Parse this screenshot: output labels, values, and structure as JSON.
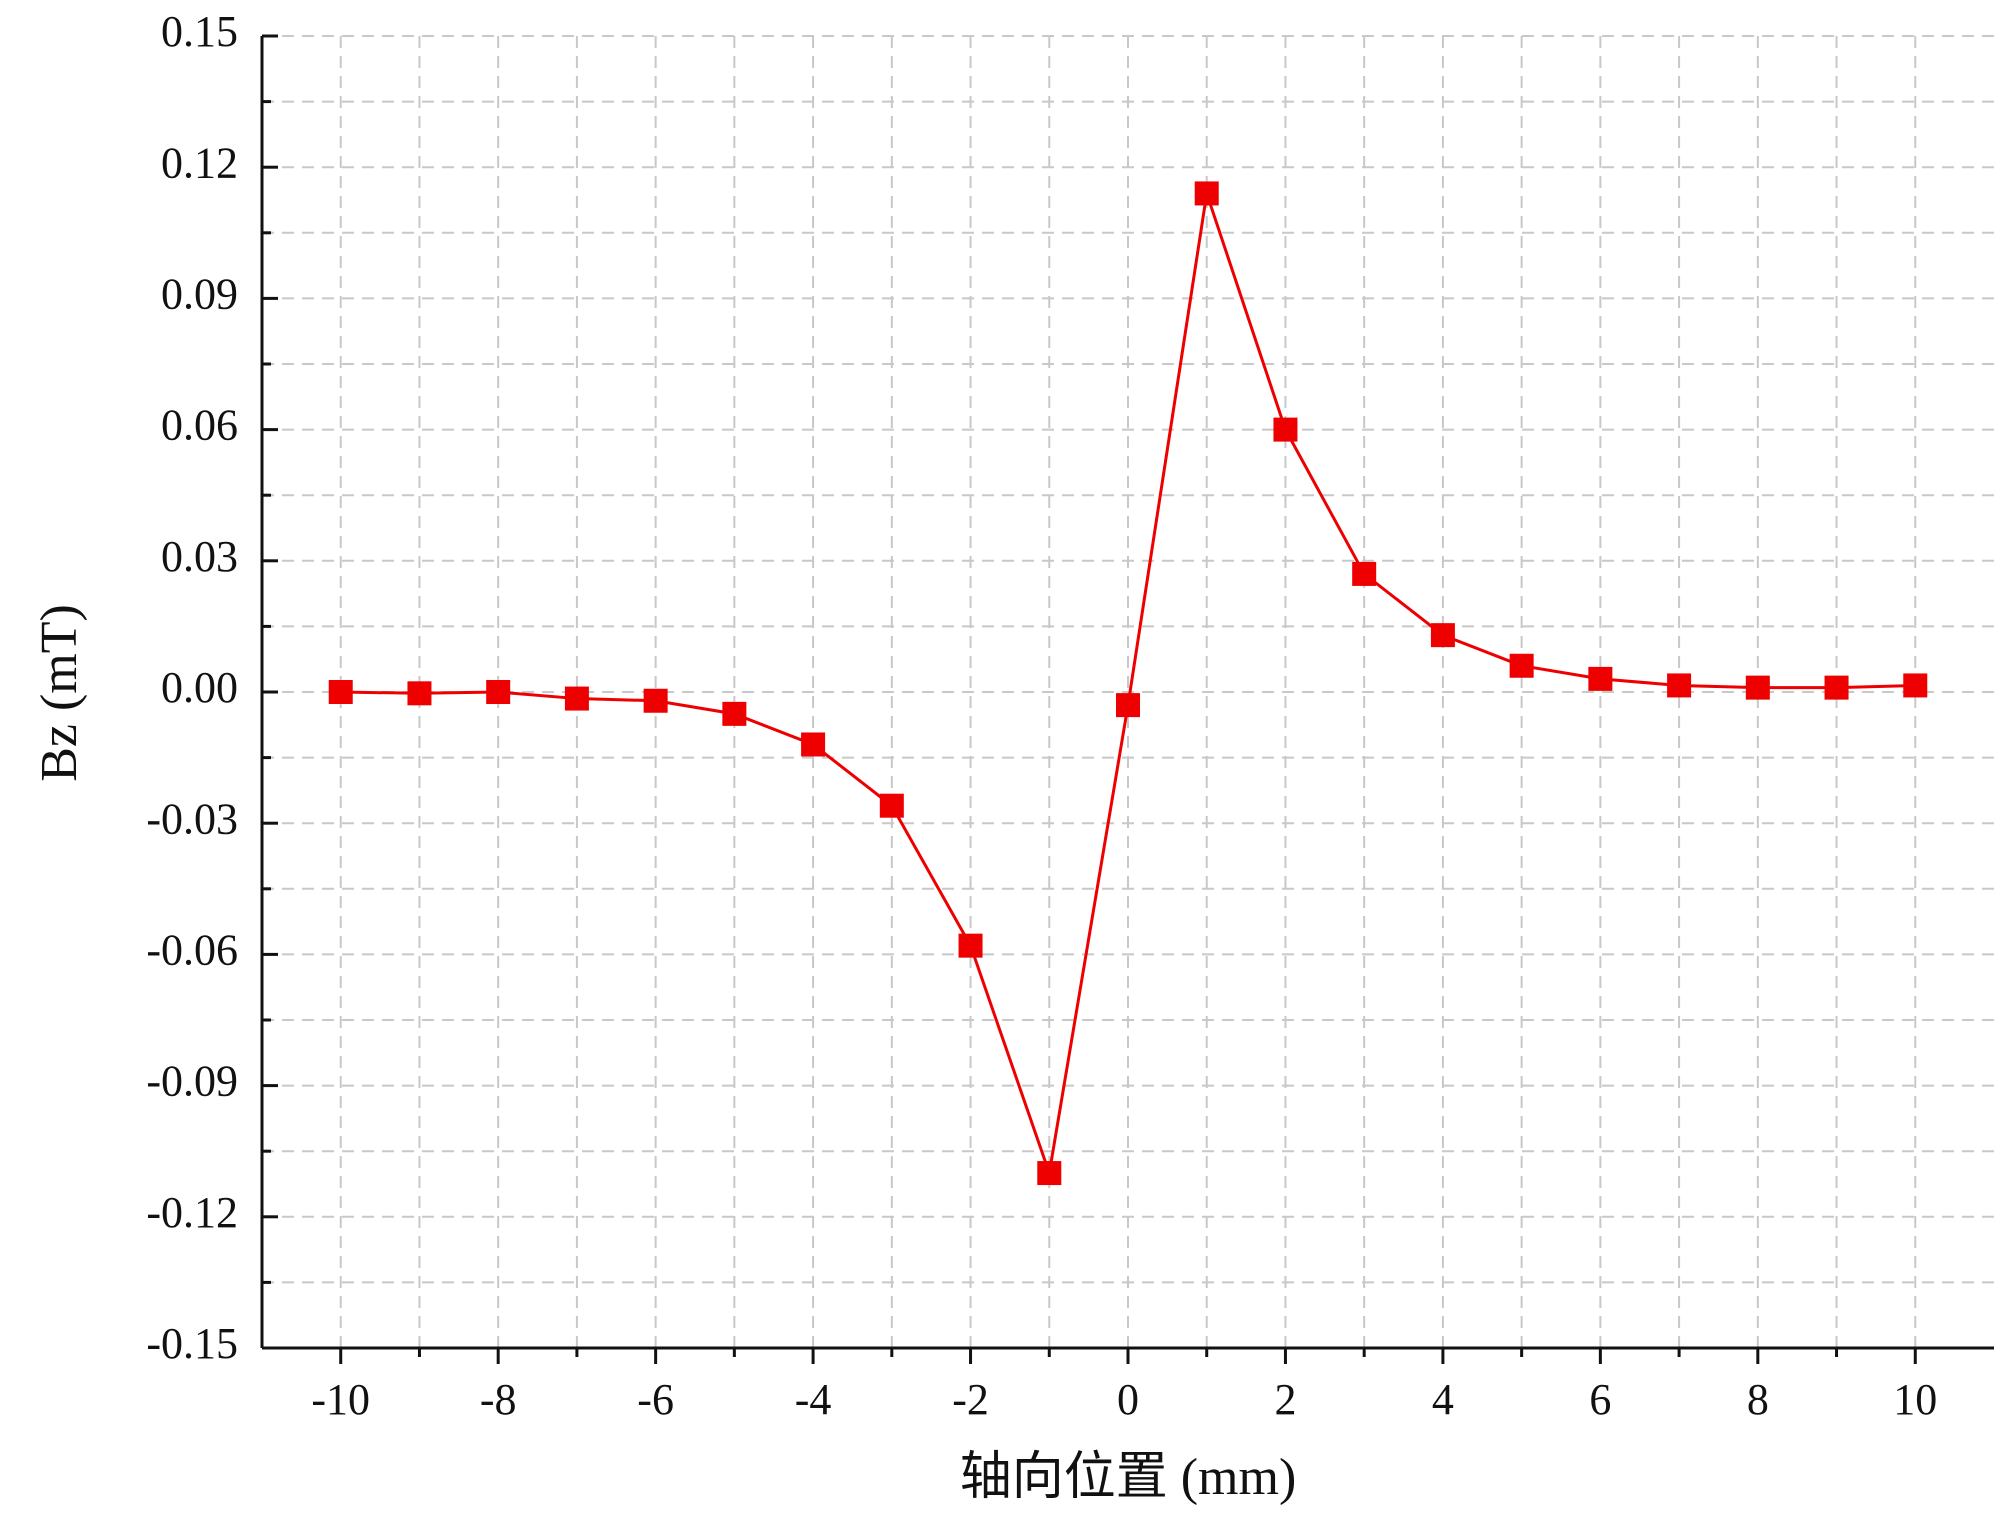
{
  "chart_data": {
    "type": "line",
    "x_label": "轴向位置 (mm)",
    "y_label": "Bz (mT)",
    "x": [
      -10,
      -9,
      -8,
      -7,
      -6,
      -5,
      -4,
      -3,
      -2,
      -1,
      0,
      1,
      2,
      3,
      4,
      5,
      6,
      7,
      8,
      9,
      10
    ],
    "series": [
      {
        "name": "Bz",
        "color": "#ee0000",
        "values": [
          0.0,
          -0.0003,
          0.0,
          -0.0015,
          -0.002,
          -0.005,
          -0.012,
          -0.026,
          -0.058,
          -0.11,
          -0.003,
          0.114,
          0.06,
          0.027,
          0.013,
          0.006,
          0.003,
          0.0015,
          0.001,
          0.001,
          0.0015
        ]
      }
    ],
    "xlim": [
      -11,
      11
    ],
    "xticks": [
      -10,
      -8,
      -6,
      -4,
      -2,
      0,
      2,
      4,
      6,
      8,
      10
    ],
    "ylim": [
      -0.15,
      0.15
    ],
    "yticks": [
      -0.15,
      -0.12,
      -0.09,
      -0.06,
      -0.03,
      {
        "value": 0,
        "label": "0.00"
      },
      0.03,
      0.06,
      0.09,
      0.12,
      0.15
    ],
    "grid": true,
    "marker": "square"
  }
}
